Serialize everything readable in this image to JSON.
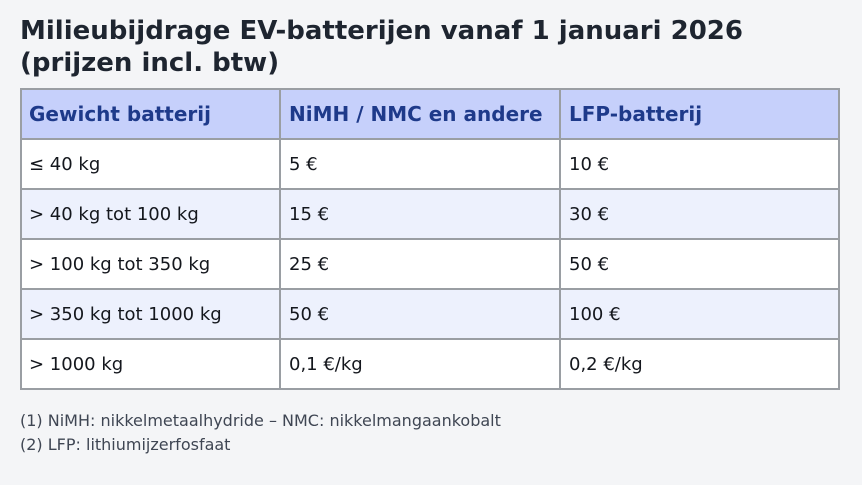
{
  "page": {
    "title": "Milieubijdrage EV-batterijen vanaf 1 januari 2026 (prijzen incl. btw)",
    "background_color": "#f4f5f7",
    "title_color": "#1e2530"
  },
  "table": {
    "columns": [
      "Gewicht batterij",
      "NiMH / NMC en andere",
      "LFP-batterij"
    ],
    "rows": [
      [
        "≤ 40 kg",
        "5 €",
        "10 €"
      ],
      [
        "> 40 kg tot 100 kg",
        "15 €",
        "30 €"
      ],
      [
        "> 100 kg tot 350 kg",
        "25 €",
        "50 €"
      ],
      [
        "> 350 kg tot 1000 kg",
        "50 €",
        "100 €"
      ],
      [
        "> 1000 kg",
        "0,1 €/kg",
        "0,2 €/kg"
      ]
    ],
    "colors": {
      "header_background": "#c6d0fb",
      "header_text": "#1e3a8a",
      "row_background": "#ffffff",
      "row_alt_background": "#edf1fd",
      "body_text": "#14171d",
      "border": "#9a9ea3"
    }
  },
  "footnotes": [
    "(1) NiMH: nikkelmetaalhydride – NMC: nikkelmangaankobalt",
    "(2) LFP: lithiumijzerfosfaat"
  ],
  "chart_data": {
    "type": "table",
    "title": "Milieubijdrage EV-batterijen vanaf 1 januari 2026 (prijzen incl. btw)",
    "columns": [
      "Gewicht batterij",
      "NiMH / NMC en andere",
      "LFP-batterij"
    ],
    "rows": [
      [
        "≤ 40 kg",
        "5 €",
        "10 €"
      ],
      [
        "> 40 kg tot 100 kg",
        "15 €",
        "30 €"
      ],
      [
        "> 100 kg tot 350 kg",
        "25 €",
        "50 €"
      ],
      [
        "> 350 kg tot 1000 kg",
        "50 €",
        "100 €"
      ],
      [
        "> 1000 kg",
        "0,1 €/kg",
        "0,2 €/kg"
      ]
    ],
    "notes": [
      "(1) NiMH: nikkelmetaalhydride – NMC: nikkelmangaankobalt",
      "(2) LFP: lithiumijzerfosfaat"
    ]
  }
}
